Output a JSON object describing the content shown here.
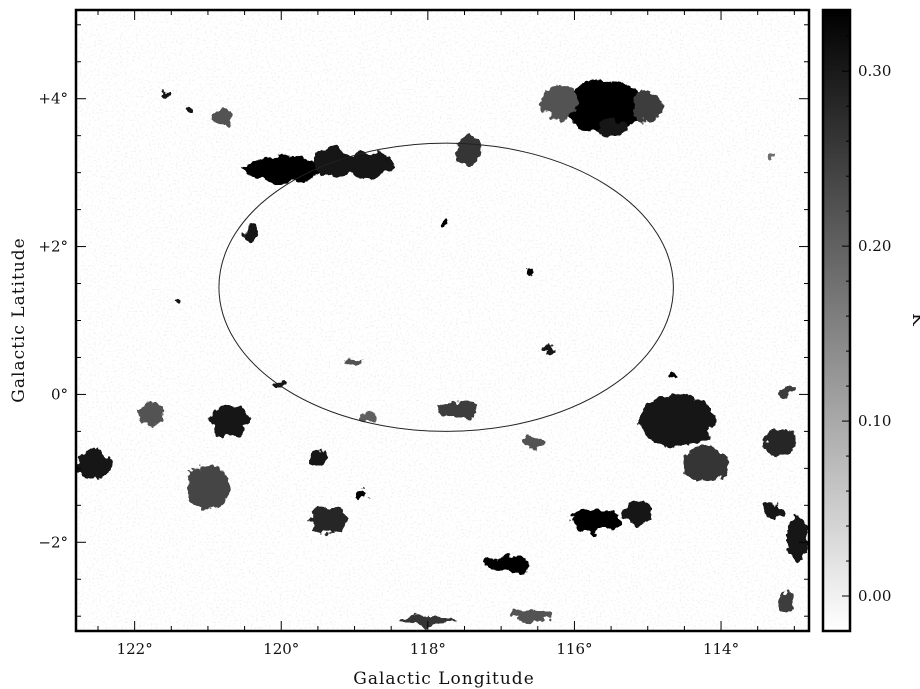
{
  "chart_data": {
    "type": "heatmap",
    "title": "",
    "xlabel": "Galactic Longitude",
    "ylabel": "Galactic Latitude",
    "xlim": [
      122.8,
      112.8
    ],
    "ylim": [
      -3.2,
      5.2
    ],
    "x_ticks": [
      {
        "value": 122,
        "label": "122°"
      },
      {
        "value": 120,
        "label": "120°"
      },
      {
        "value": 118,
        "label": "118°"
      },
      {
        "value": 116,
        "label": "116°"
      },
      {
        "value": 114,
        "label": "114°"
      }
    ],
    "y_ticks": [
      {
        "value": -2,
        "label": "−2°"
      },
      {
        "value": 0,
        "label": "0°"
      },
      {
        "value": 2,
        "label": "+2°"
      },
      {
        "value": 4,
        "label": "+4°"
      }
    ],
    "colorbar": {
      "label": "K",
      "range": [
        -0.02,
        0.335
      ],
      "colormap": "grayscale-inverted",
      "ticks": [
        {
          "value": 0.0,
          "label": "0.00"
        },
        {
          "value": 0.1,
          "label": "0.10"
        },
        {
          "value": 0.2,
          "label": "0.20"
        },
        {
          "value": 0.3,
          "label": "0.30"
        }
      ]
    },
    "annotations": [
      {
        "type": "ellipse",
        "center_l": 117.75,
        "center_b": 1.45,
        "semi_axis_l": 3.1,
        "semi_axis_b": 1.95
      }
    ],
    "features": [
      {
        "l": 115.6,
        "b": 3.9,
        "rx": 0.55,
        "ry": 0.35,
        "v": 0.33
      },
      {
        "l": 115.0,
        "b": 3.9,
        "rx": 0.2,
        "ry": 0.22,
        "v": 0.25
      },
      {
        "l": 116.2,
        "b": 3.95,
        "rx": 0.25,
        "ry": 0.25,
        "v": 0.22
      },
      {
        "l": 119.95,
        "b": 3.05,
        "rx": 0.55,
        "ry": 0.18,
        "v": 0.33
      },
      {
        "l": 119.3,
        "b": 3.15,
        "rx": 0.25,
        "ry": 0.2,
        "v": 0.3
      },
      {
        "l": 118.8,
        "b": 3.1,
        "rx": 0.35,
        "ry": 0.18,
        "v": 0.3
      },
      {
        "l": 117.45,
        "b": 3.3,
        "rx": 0.18,
        "ry": 0.2,
        "v": 0.26
      },
      {
        "l": 120.8,
        "b": 3.75,
        "rx": 0.12,
        "ry": 0.12,
        "v": 0.22
      },
      {
        "l": 120.4,
        "b": 2.2,
        "rx": 0.1,
        "ry": 0.12,
        "v": 0.3
      },
      {
        "l": 117.75,
        "b": 2.3,
        "rx": 0.06,
        "ry": 0.07,
        "v": 0.33
      },
      {
        "l": 116.6,
        "b": 1.65,
        "rx": 0.05,
        "ry": 0.05,
        "v": 0.33
      },
      {
        "l": 121.4,
        "b": 1.25,
        "rx": 0.08,
        "ry": 0.05,
        "v": 0.3
      },
      {
        "l": 116.35,
        "b": 0.6,
        "rx": 0.07,
        "ry": 0.06,
        "v": 0.3
      },
      {
        "l": 114.6,
        "b": -0.35,
        "rx": 0.5,
        "ry": 0.35,
        "v": 0.3
      },
      {
        "l": 113.2,
        "b": -0.65,
        "rx": 0.2,
        "ry": 0.2,
        "v": 0.28
      },
      {
        "l": 114.2,
        "b": -0.95,
        "rx": 0.3,
        "ry": 0.25,
        "v": 0.26
      },
      {
        "l": 115.7,
        "b": -1.7,
        "rx": 0.35,
        "ry": 0.15,
        "v": 0.33
      },
      {
        "l": 115.15,
        "b": -1.6,
        "rx": 0.2,
        "ry": 0.15,
        "v": 0.3
      },
      {
        "l": 116.9,
        "b": -2.3,
        "rx": 0.3,
        "ry": 0.12,
        "v": 0.33
      },
      {
        "l": 119.35,
        "b": -1.7,
        "rx": 0.25,
        "ry": 0.18,
        "v": 0.28
      },
      {
        "l": 118.9,
        "b": -1.35,
        "rx": 0.08,
        "ry": 0.07,
        "v": 0.33
      },
      {
        "l": 121.0,
        "b": -1.25,
        "rx": 0.3,
        "ry": 0.3,
        "v": 0.24
      },
      {
        "l": 121.8,
        "b": -0.25,
        "rx": 0.2,
        "ry": 0.15,
        "v": 0.22
      },
      {
        "l": 120.7,
        "b": -0.35,
        "rx": 0.28,
        "ry": 0.22,
        "v": 0.3
      },
      {
        "l": 122.55,
        "b": -0.95,
        "rx": 0.25,
        "ry": 0.2,
        "v": 0.3
      },
      {
        "l": 112.95,
        "b": -1.95,
        "rx": 0.15,
        "ry": 0.3,
        "v": 0.3
      },
      {
        "l": 113.3,
        "b": -1.55,
        "rx": 0.12,
        "ry": 0.1,
        "v": 0.3
      },
      {
        "l": 117.6,
        "b": -0.2,
        "rx": 0.25,
        "ry": 0.12,
        "v": 0.25
      },
      {
        "l": 118.8,
        "b": -0.3,
        "rx": 0.12,
        "ry": 0.06,
        "v": 0.2
      },
      {
        "l": 119.5,
        "b": -0.85,
        "rx": 0.1,
        "ry": 0.12,
        "v": 0.3
      },
      {
        "l": 116.55,
        "b": -0.65,
        "rx": 0.15,
        "ry": 0.08,
        "v": 0.22
      },
      {
        "l": 115.5,
        "b": 3.6,
        "rx": 0.2,
        "ry": 0.12,
        "v": 0.3
      },
      {
        "l": 114.65,
        "b": 0.25,
        "rx": 0.06,
        "ry": 0.06,
        "v": 0.33
      },
      {
        "l": 113.1,
        "b": 0.05,
        "rx": 0.08,
        "ry": 0.08,
        "v": 0.25
      },
      {
        "l": 118.0,
        "b": -3.05,
        "rx": 0.4,
        "ry": 0.06,
        "v": 0.26
      },
      {
        "l": 116.6,
        "b": -3.0,
        "rx": 0.3,
        "ry": 0.08,
        "v": 0.22
      },
      {
        "l": 113.1,
        "b": -2.8,
        "rx": 0.1,
        "ry": 0.15,
        "v": 0.25
      },
      {
        "l": 113.3,
        "b": 3.2,
        "rx": 0.05,
        "ry": 0.08,
        "v": 0.18
      },
      {
        "l": 120.05,
        "b": 0.15,
        "rx": 0.1,
        "ry": 0.05,
        "v": 0.3
      },
      {
        "l": 119.0,
        "b": 0.45,
        "rx": 0.1,
        "ry": 0.05,
        "v": 0.22
      },
      {
        "l": 121.6,
        "b": 4.05,
        "rx": 0.05,
        "ry": 0.05,
        "v": 0.3
      },
      {
        "l": 121.25,
        "b": 3.85,
        "rx": 0.06,
        "ry": 0.05,
        "v": 0.3
      }
    ]
  }
}
